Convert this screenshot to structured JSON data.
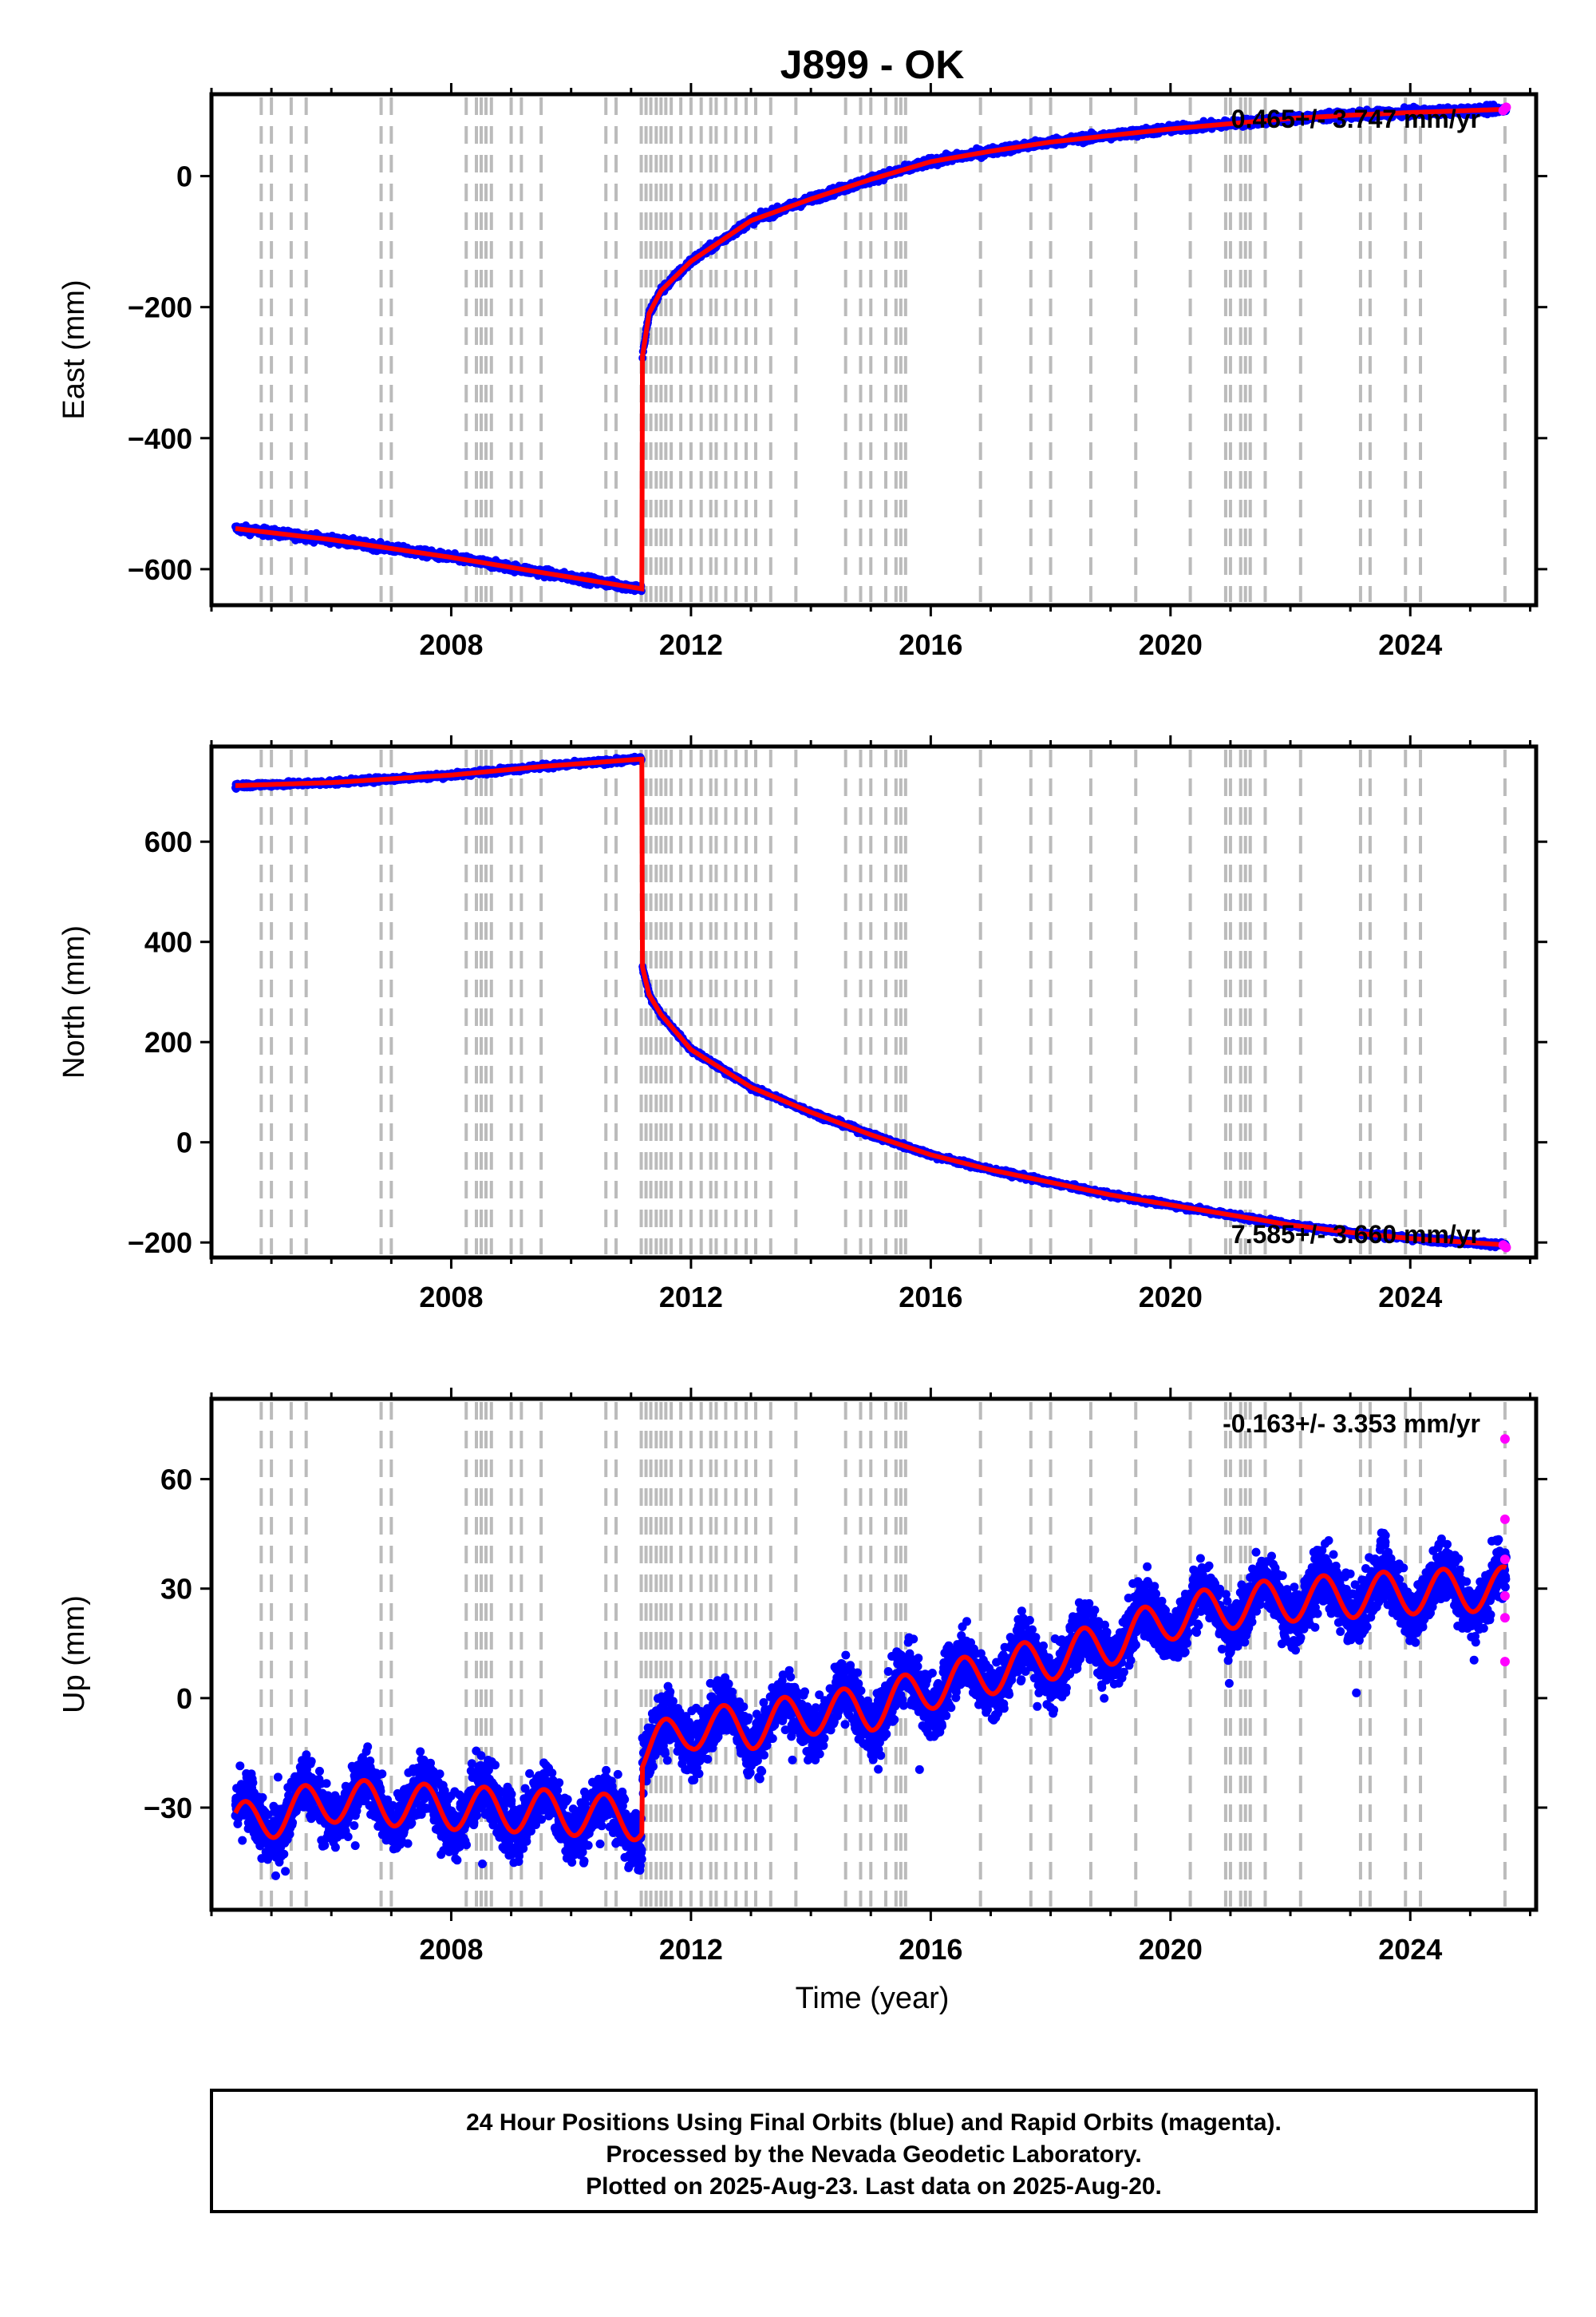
{
  "title": "J899 - OK",
  "xlabel": "Time (year)",
  "colors": {
    "final": "#0000ff",
    "rapid": "#ff00ff",
    "model": "#ff0000",
    "event_lines": "#bbbbbb"
  },
  "chart_data": [
    {
      "type": "scatter",
      "ylabel": "East (mm)",
      "xlim": [
        2004.0,
        2026.1
      ],
      "ylim": [
        -655,
        125
      ],
      "yticks": [
        -600,
        -400,
        -200,
        0
      ],
      "ytick_labels": [
        "−600",
        "−400",
        "−200",
        "0"
      ],
      "xticks": [
        2008,
        2012,
        2016,
        2020,
        2024
      ],
      "rate_label": "0.465+/- 3.747 mm/yr",
      "rate_pos": "top-right",
      "model": [
        [
          2004.4,
          -538
        ],
        [
          2006.0,
          -555
        ],
        [
          2008.0,
          -582
        ],
        [
          2009.5,
          -605
        ],
        [
          2011.18,
          -630
        ],
        [
          2011.19,
          -275
        ],
        [
          2011.3,
          -210
        ],
        [
          2011.5,
          -175
        ],
        [
          2012.0,
          -130
        ],
        [
          2013.0,
          -68
        ],
        [
          2014.0,
          -35
        ],
        [
          2015.0,
          -5
        ],
        [
          2016.0,
          22
        ],
        [
          2017.0,
          38
        ],
        [
          2018.0,
          52
        ],
        [
          2019.0,
          62
        ],
        [
          2020.0,
          72
        ],
        [
          2021.0,
          80
        ],
        [
          2022.0,
          88
        ],
        [
          2023.0,
          93
        ],
        [
          2024.0,
          97
        ],
        [
          2025.6,
          102
        ]
      ],
      "noise_mm": 6,
      "rapid": [
        [
          2025.55,
          100
        ],
        [
          2025.58,
          103
        ],
        [
          2025.6,
          105
        ]
      ]
    },
    {
      "type": "scatter",
      "ylabel": "North (mm)",
      "xlim": [
        2004.0,
        2026.1
      ],
      "ylim": [
        -230,
        790
      ],
      "yticks": [
        -200,
        0,
        200,
        400,
        600
      ],
      "ytick_labels": [
        "−200",
        "0",
        "200",
        "400",
        "600"
      ],
      "xticks": [
        2008,
        2012,
        2016,
        2020,
        2024
      ],
      "rate_label": "7.585+/- 3.660 mm/yr",
      "rate_pos": "bottom-right",
      "model": [
        [
          2004.4,
          712
        ],
        [
          2006.0,
          718
        ],
        [
          2008.0,
          733
        ],
        [
          2009.5,
          750
        ],
        [
          2011.18,
          765
        ],
        [
          2011.19,
          350
        ],
        [
          2011.3,
          295
        ],
        [
          2011.5,
          255
        ],
        [
          2012.0,
          185
        ],
        [
          2013.0,
          110
        ],
        [
          2014.0,
          60
        ],
        [
          2015.0,
          15
        ],
        [
          2016.0,
          -25
        ],
        [
          2017.0,
          -55
        ],
        [
          2018.0,
          -80
        ],
        [
          2019.0,
          -105
        ],
        [
          2020.0,
          -125
        ],
        [
          2021.0,
          -145
        ],
        [
          2022.0,
          -165
        ],
        [
          2023.0,
          -180
        ],
        [
          2024.0,
          -192
        ],
        [
          2025.6,
          -205
        ]
      ],
      "noise_mm": 5,
      "rapid": [
        [
          2025.55,
          -205
        ],
        [
          2025.58,
          -208
        ],
        [
          2025.6,
          -210
        ]
      ]
    },
    {
      "type": "scatter",
      "ylabel": "Up (mm)",
      "xlim": [
        2004.0,
        2026.1
      ],
      "ylim": [
        -58,
        82
      ],
      "yticks": [
        -30,
        0,
        30,
        60
      ],
      "ytick_labels": [
        "−30",
        "0",
        "30",
        "60"
      ],
      "xticks": [
        2008,
        2012,
        2016,
        2020,
        2024
      ],
      "rate_label": "-0.163+/- 3.353 mm/yr",
      "rate_pos": "top-right",
      "model": [
        [
          2004.4,
          -35
        ],
        [
          2006.0,
          -28
        ],
        [
          2008.0,
          -30
        ],
        [
          2009.5,
          -31
        ],
        [
          2011.18,
          -33
        ],
        [
          2011.19,
          -15
        ],
        [
          2012.0,
          -8
        ],
        [
          2013.0,
          -8
        ],
        [
          2014.0,
          -4
        ],
        [
          2015.0,
          -3
        ],
        [
          2016.0,
          3
        ],
        [
          2017.0,
          7
        ],
        [
          2018.0,
          11
        ],
        [
          2019.0,
          15
        ],
        [
          2020.0,
          22
        ],
        [
          2021.0,
          25
        ],
        [
          2022.0,
          27
        ],
        [
          2023.0,
          28
        ],
        [
          2024.0,
          29
        ],
        [
          2025.6,
          30
        ]
      ],
      "seasonal_amp_mm": 6,
      "noise_mm": 8,
      "rapid": [
        [
          2025.58,
          71
        ],
        [
          2025.58,
          49
        ],
        [
          2025.58,
          38
        ],
        [
          2025.58,
          28
        ],
        [
          2025.58,
          22
        ],
        [
          2025.58,
          10
        ]
      ]
    }
  ],
  "event_lines": [
    2004.83,
    2005.0,
    2005.33,
    2005.58,
    2006.83,
    2007.0,
    2008.25,
    2008.42,
    2008.5,
    2008.58,
    2008.67,
    2009.0,
    2009.17,
    2009.5,
    2010.58,
    2010.75,
    2011.17,
    2011.25,
    2011.33,
    2011.42,
    2011.5,
    2011.58,
    2011.67,
    2011.83,
    2012.0,
    2012.17,
    2012.33,
    2012.42,
    2012.58,
    2012.75,
    2012.92,
    2013.08,
    2013.33,
    2013.75,
    2014.58,
    2014.83,
    2015.0,
    2015.25,
    2015.42,
    2015.5,
    2015.58,
    2016.83,
    2017.67,
    2018.0,
    2018.67,
    2019.42,
    2020.33,
    2020.92,
    2021.0,
    2021.17,
    2021.25,
    2021.33,
    2021.58,
    2022.17,
    2023.17,
    2023.33,
    2023.92,
    2024.17,
    2025.58
  ],
  "footer": {
    "line1": "24 Hour Positions Using Final Orbits (blue) and Rapid Orbits (magenta).",
    "line2": "Processed by the Nevada Geodetic Laboratory.",
    "line3": "Plotted on 2025-Aug-23. Last data on 2025-Aug-20."
  }
}
